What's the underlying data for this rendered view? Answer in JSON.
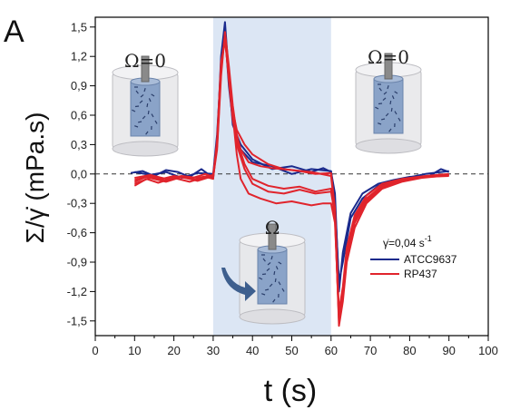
{
  "panel_label": "A",
  "colors": {
    "ATCC9637": "#1a2a8c",
    "RP437": "#e0242c",
    "shade": "#dce6f4",
    "zero_line": "#333333"
  },
  "insets": {
    "left_label": "Ω=0",
    "center_label": "Ω",
    "right_label": "Ω=0"
  },
  "legend": {
    "rate_label": "γ̇=0,04 s",
    "rate_exponent": "-1",
    "items": [
      "ATCC9637",
      "RP437"
    ]
  },
  "chart_data": {
    "type": "line",
    "xlabel": "t (s)",
    "ylabel": "Σ/γ̇ (mPa.s)",
    "xlim": [
      0,
      100
    ],
    "ylim": [
      -1.65,
      1.6
    ],
    "xticks": [
      0,
      10,
      20,
      30,
      40,
      50,
      60,
      70,
      80,
      90,
      100
    ],
    "yticks": [
      "1,5",
      "1,2",
      "0,9",
      "0,6",
      "0,3",
      "0,0",
      "-0,3",
      "-0,6",
      "-0,9",
      "-1,2",
      "-1,5"
    ],
    "ytick_values": [
      1.5,
      1.2,
      0.9,
      0.6,
      0.3,
      0.0,
      -0.3,
      -0.6,
      -0.9,
      -1.2,
      -1.5
    ],
    "shaded_region": [
      30,
      60
    ],
    "zero_line": "dashed",
    "series": [
      {
        "name": "ATCC9637",
        "color": "#1a2a8c",
        "points": [
          [
            9,
            0.01
          ],
          [
            12,
            0.03
          ],
          [
            15,
            -0.02
          ],
          [
            18,
            0.04
          ],
          [
            21,
            0.02
          ],
          [
            24,
            -0.03
          ],
          [
            27,
            0.05
          ],
          [
            30,
            -0.04
          ],
          [
            31,
            0.3
          ],
          [
            32,
            1.2
          ],
          [
            33,
            1.55
          ],
          [
            34,
            1.0
          ],
          [
            35,
            0.5
          ],
          [
            37,
            0.3
          ],
          [
            40,
            0.15
          ],
          [
            45,
            0.05
          ],
          [
            50,
            0.08
          ],
          [
            55,
            0.02
          ],
          [
            58,
            0.06
          ],
          [
            60,
            0.02
          ],
          [
            61,
            -0.2
          ],
          [
            62,
            -1.2
          ],
          [
            63,
            -0.8
          ],
          [
            65,
            -0.4
          ],
          [
            68,
            -0.2
          ],
          [
            72,
            -0.1
          ],
          [
            76,
            -0.06
          ],
          [
            80,
            -0.03
          ],
          [
            85,
            -0.02
          ],
          [
            88,
            0.05
          ],
          [
            90,
            0.02
          ]
        ]
      },
      {
        "name": "ATCC9637",
        "color": "#1a2a8c",
        "points": [
          [
            10,
            0.02
          ],
          [
            14,
            -0.01
          ],
          [
            18,
            0.02
          ],
          [
            22,
            -0.04
          ],
          [
            26,
            0.01
          ],
          [
            30,
            0.0
          ],
          [
            31,
            0.4
          ],
          [
            32,
            1.1
          ],
          [
            33,
            1.45
          ],
          [
            34,
            0.9
          ],
          [
            35,
            0.55
          ],
          [
            37,
            0.25
          ],
          [
            40,
            0.12
          ],
          [
            45,
            0.08
          ],
          [
            50,
            0.0
          ],
          [
            55,
            0.05
          ],
          [
            60,
            0.03
          ],
          [
            61,
            -0.3
          ],
          [
            62,
            -1.1
          ],
          [
            63,
            -0.9
          ],
          [
            65,
            -0.45
          ],
          [
            68,
            -0.25
          ],
          [
            72,
            -0.12
          ],
          [
            78,
            -0.05
          ],
          [
            84,
            0.0
          ],
          [
            90,
            0.03
          ]
        ]
      },
      {
        "name": "RP437",
        "color": "#e0242c",
        "points": [
          [
            10,
            -0.08
          ],
          [
            13,
            -0.03
          ],
          [
            16,
            -0.06
          ],
          [
            20,
            -0.02
          ],
          [
            24,
            -0.05
          ],
          [
            28,
            0.0
          ],
          [
            30,
            -0.03
          ],
          [
            31,
            0.25
          ],
          [
            32,
            1.0
          ],
          [
            33,
            1.45
          ],
          [
            34,
            1.1
          ],
          [
            35,
            0.7
          ],
          [
            36,
            0.4
          ],
          [
            37,
            0.25
          ],
          [
            39,
            0.12
          ],
          [
            42,
            0.08
          ],
          [
            45,
            0.06
          ],
          [
            50,
            0.04
          ],
          [
            55,
            0.02
          ],
          [
            60,
            -0.02
          ],
          [
            61,
            -0.4
          ],
          [
            62,
            -1.55
          ],
          [
            63,
            -1.3
          ],
          [
            64,
            -0.9
          ],
          [
            66,
            -0.55
          ],
          [
            69,
            -0.3
          ],
          [
            73,
            -0.15
          ],
          [
            78,
            -0.08
          ],
          [
            83,
            -0.04
          ],
          [
            88,
            -0.02
          ],
          [
            90,
            -0.01
          ]
        ]
      },
      {
        "name": "RP437",
        "color": "#e0242c",
        "points": [
          [
            10,
            -0.12
          ],
          [
            13,
            -0.05
          ],
          [
            16,
            -0.09
          ],
          [
            20,
            -0.04
          ],
          [
            24,
            -0.08
          ],
          [
            28,
            -0.03
          ],
          [
            30,
            -0.05
          ],
          [
            31,
            0.35
          ],
          [
            32,
            1.15
          ],
          [
            33,
            1.35
          ],
          [
            34,
            1.05
          ],
          [
            35,
            0.6
          ],
          [
            36,
            0.2
          ],
          [
            37,
            -0.05
          ],
          [
            39,
            -0.2
          ],
          [
            42,
            -0.25
          ],
          [
            46,
            -0.3
          ],
          [
            50,
            -0.28
          ],
          [
            55,
            -0.32
          ],
          [
            58,
            -0.3
          ],
          [
            60,
            -0.3
          ],
          [
            61,
            -0.5
          ],
          [
            62,
            -1.45
          ],
          [
            63,
            -1.2
          ],
          [
            64,
            -0.8
          ],
          [
            66,
            -0.45
          ],
          [
            69,
            -0.25
          ],
          [
            73,
            -0.12
          ],
          [
            78,
            -0.06
          ],
          [
            84,
            -0.03
          ],
          [
            90,
            -0.02
          ]
        ]
      },
      {
        "name": "RP437",
        "color": "#e0242c",
        "points": [
          [
            10,
            -0.06
          ],
          [
            14,
            -0.02
          ],
          [
            18,
            -0.07
          ],
          [
            22,
            -0.03
          ],
          [
            26,
            -0.06
          ],
          [
            30,
            -0.02
          ],
          [
            31,
            0.3
          ],
          [
            32,
            1.1
          ],
          [
            33,
            1.4
          ],
          [
            34,
            0.95
          ],
          [
            35,
            0.55
          ],
          [
            36,
            0.35
          ],
          [
            38,
            0.1
          ],
          [
            40,
            -0.05
          ],
          [
            44,
            -0.12
          ],
          [
            48,
            -0.15
          ],
          [
            52,
            -0.13
          ],
          [
            56,
            -0.18
          ],
          [
            60,
            -0.15
          ],
          [
            61,
            -0.45
          ],
          [
            62,
            -1.5
          ],
          [
            63,
            -1.25
          ],
          [
            64,
            -0.85
          ],
          [
            66,
            -0.5
          ],
          [
            69,
            -0.28
          ],
          [
            73,
            -0.14
          ],
          [
            78,
            -0.07
          ],
          [
            84,
            -0.03
          ],
          [
            90,
            -0.01
          ]
        ]
      },
      {
        "name": "RP437",
        "color": "#e0242c",
        "points": [
          [
            10,
            -0.04
          ],
          [
            14,
            -0.01
          ],
          [
            18,
            -0.05
          ],
          [
            22,
            -0.02
          ],
          [
            26,
            -0.04
          ],
          [
            30,
            -0.01
          ],
          [
            31,
            0.28
          ],
          [
            32,
            1.05
          ],
          [
            33,
            1.42
          ],
          [
            34,
            1.0
          ],
          [
            35,
            0.65
          ],
          [
            36,
            0.45
          ],
          [
            38,
            0.3
          ],
          [
            40,
            0.2
          ],
          [
            44,
            0.1
          ],
          [
            48,
            0.05
          ],
          [
            52,
            0.03
          ],
          [
            56,
            0.0
          ],
          [
            60,
            0.01
          ],
          [
            61,
            -0.35
          ],
          [
            62,
            -1.4
          ],
          [
            63,
            -1.15
          ],
          [
            64,
            -0.75
          ],
          [
            66,
            -0.42
          ],
          [
            69,
            -0.22
          ],
          [
            73,
            -0.1
          ],
          [
            78,
            -0.05
          ],
          [
            84,
            -0.02
          ],
          [
            90,
            0.0
          ]
        ]
      },
      {
        "name": "RP437",
        "color": "#e0242c",
        "points": [
          [
            10,
            -0.1
          ],
          [
            14,
            -0.04
          ],
          [
            18,
            -0.08
          ],
          [
            22,
            -0.03
          ],
          [
            26,
            -0.07
          ],
          [
            30,
            -0.02
          ],
          [
            31,
            0.32
          ],
          [
            32,
            1.12
          ],
          [
            33,
            1.38
          ],
          [
            34,
            0.98
          ],
          [
            35,
            0.58
          ],
          [
            36,
            0.3
          ],
          [
            38,
            0.05
          ],
          [
            40,
            -0.1
          ],
          [
            44,
            -0.18
          ],
          [
            48,
            -0.2
          ],
          [
            52,
            -0.16
          ],
          [
            56,
            -0.2
          ],
          [
            60,
            -0.18
          ],
          [
            61,
            -0.42
          ],
          [
            62,
            -1.48
          ],
          [
            63,
            -1.22
          ],
          [
            64,
            -0.82
          ],
          [
            66,
            -0.48
          ],
          [
            69,
            -0.26
          ],
          [
            73,
            -0.13
          ],
          [
            78,
            -0.06
          ],
          [
            84,
            -0.03
          ],
          [
            90,
            -0.01
          ]
        ]
      }
    ]
  }
}
